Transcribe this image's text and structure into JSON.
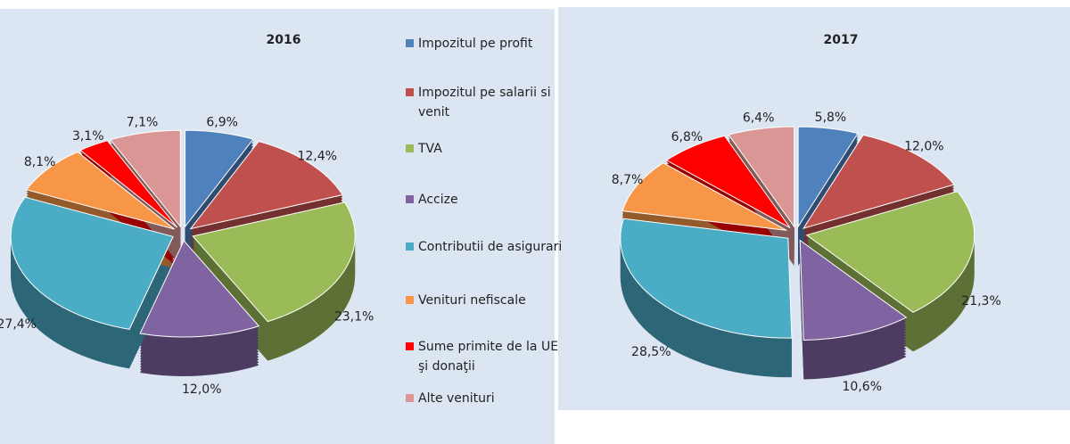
{
  "chart_data": [
    {
      "type": "pie3d",
      "title": "2016",
      "categories": [
        "Impozitul pe profit",
        "Impozitul pe salarii si venit",
        "TVA",
        "Accize",
        "Contributii de asigurari",
        "Venituri nefiscale",
        "Sume primite de la UE şi donaţii",
        "Alte venituri"
      ],
      "colors": [
        "#4f81bd",
        "#c0504d",
        "#9bbb59",
        "#8064a2",
        "#4bacc6",
        "#f79646",
        "#ff0000",
        "#d99694"
      ],
      "values": [
        6.9,
        12.4,
        23.1,
        12.0,
        27.4,
        8.1,
        3.1,
        7.1
      ],
      "value_labels": [
        "6,9%",
        "12,4%",
        "23,1%",
        "12,0%",
        "27,4%",
        "8,1%",
        "3,1%",
        "7,1%"
      ]
    },
    {
      "type": "pie3d",
      "title": "2017",
      "values": [
        5.8,
        12.0,
        21.3,
        10.6,
        28.5,
        8.7,
        6.8,
        6.4
      ],
      "value_labels": [
        "5,8%",
        "12,0%",
        "21,3%",
        "10,6%",
        "28,5%",
        "8,7%",
        "6,8%",
        "6,4%"
      ]
    }
  ]
}
